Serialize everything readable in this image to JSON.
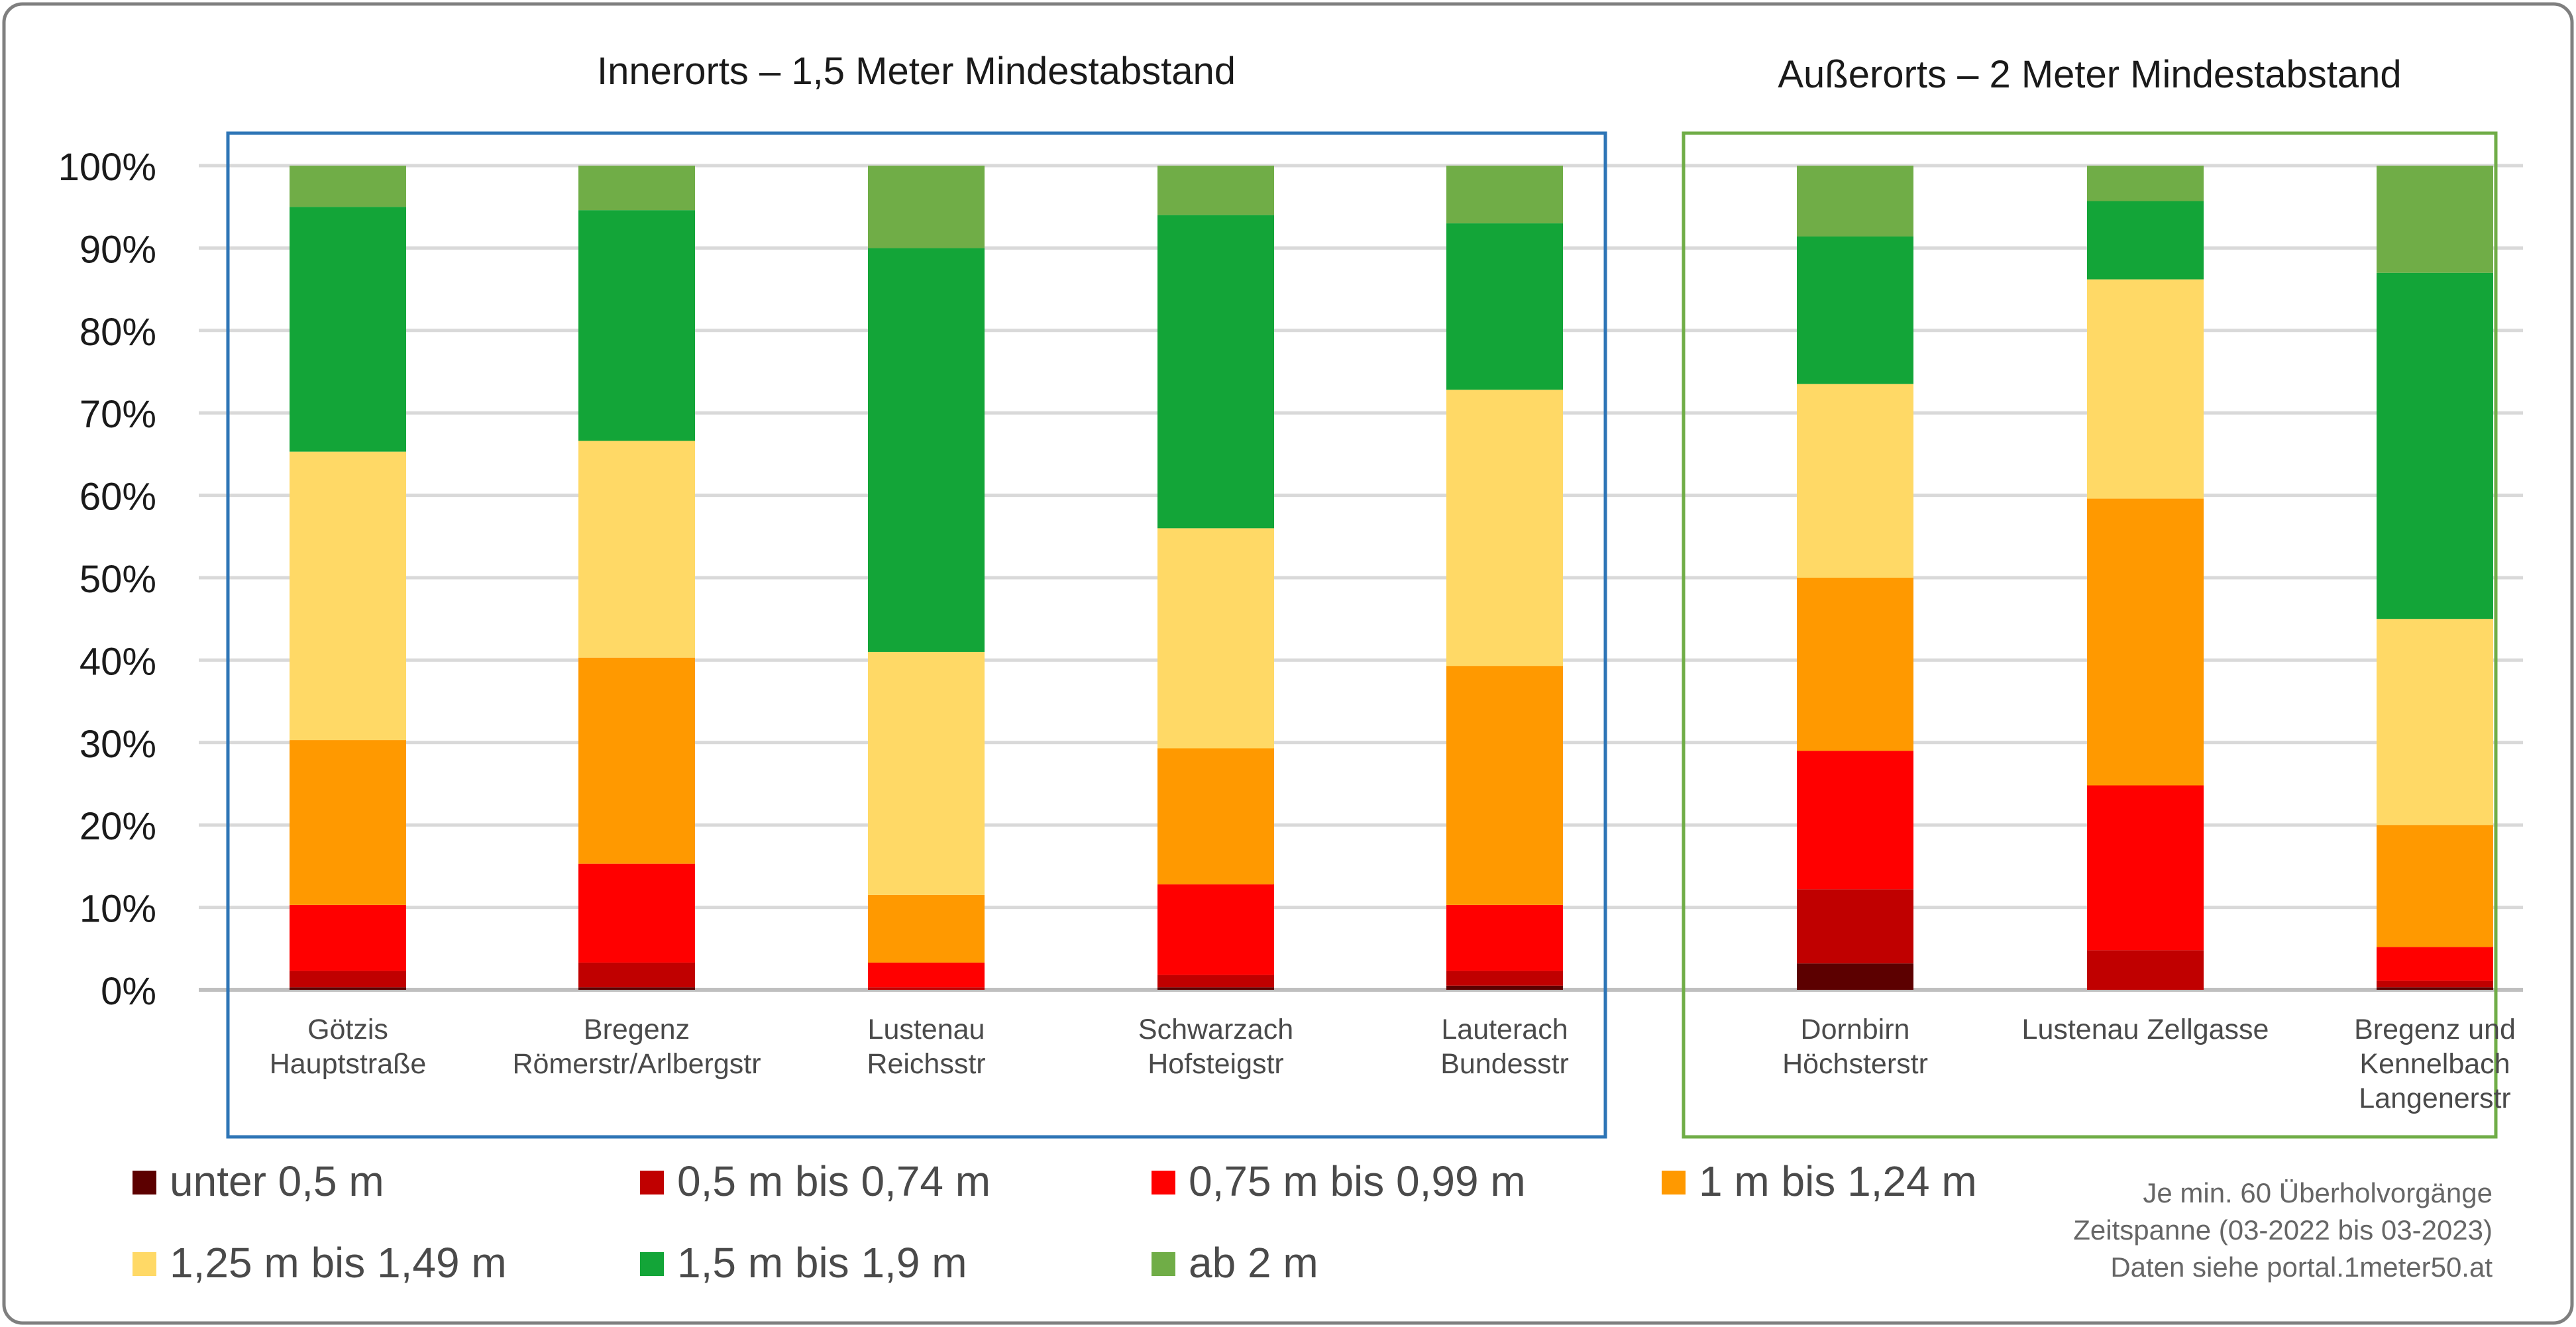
{
  "chart_data": {
    "type": "bar",
    "stacked": true,
    "normalized": true,
    "ylim": [
      0,
      100
    ],
    "yticks": [
      "0%",
      "10%",
      "20%",
      "30%",
      "40%",
      "50%",
      "60%",
      "70%",
      "80%",
      "90%",
      "100%"
    ],
    "grid": true,
    "legend_position": "bottom",
    "groups": [
      {
        "title": "Innerorts – 1,5 Meter Mindestabstand",
        "frame_color": "#2e75b6",
        "start": 0,
        "count": 5
      },
      {
        "title": "Außerorts – 2 Meter Mindestabstand",
        "frame_color": "#70ad47",
        "start": 5,
        "count": 3
      }
    ],
    "categories": [
      [
        "Götzis",
        "Hauptstraße"
      ],
      [
        "Bregenz",
        "Römerstr/Arlbergstr"
      ],
      [
        "Lustenau",
        "Reichsstr"
      ],
      [
        "Schwarzach",
        "Hofsteigstr"
      ],
      [
        "Lauterach",
        "Bundesstr"
      ],
      [
        "Dornbirn",
        "Höchsterstr"
      ],
      [
        "Lustenau Zellgasse"
      ],
      [
        "Bregenz und",
        "Kennelbach",
        "Langenerstr"
      ]
    ],
    "series": [
      {
        "name": "unter 0,5 m",
        "color": "#5c0000",
        "values": [
          0.3,
          0.3,
          0.0,
          0.3,
          0.5,
          3.2,
          0.0,
          0.3
        ]
      },
      {
        "name": "0,5 m bis 0,74 m",
        "color": "#c00000",
        "values": [
          2.0,
          3.0,
          0.3,
          1.5,
          1.8,
          9.0,
          4.8,
          0.8
        ]
      },
      {
        "name": "0,75 m bis 0,99 m",
        "color": "#ff0000",
        "values": [
          8.0,
          12.0,
          3.0,
          11.0,
          8.0,
          16.8,
          20.0,
          4.1
        ]
      },
      {
        "name": "1 m bis 1,24 m",
        "color": "#ff9900",
        "values": [
          20.0,
          25.0,
          8.2,
          16.5,
          29.0,
          21.0,
          34.8,
          14.8
        ]
      },
      {
        "name": "1,25 m bis 1,49 m",
        "color": "#ffd966",
        "values": [
          35.0,
          26.3,
          29.5,
          26.7,
          33.5,
          23.5,
          26.6,
          25.0
        ]
      },
      {
        "name": "1,5 m bis 1,9 m",
        "color": "#13a538",
        "values": [
          29.7,
          28.0,
          49.0,
          38.0,
          20.2,
          17.9,
          9.5,
          42.0
        ]
      },
      {
        "name": "ab 2 m",
        "color": "#70ad47",
        "values": [
          5.0,
          5.4,
          10.0,
          6.0,
          7.0,
          8.6,
          4.3,
          13.0
        ]
      }
    ]
  },
  "notes": [
    "Je min. 60 Überholvorgänge",
    "Zeitspanne (03-2022 bis 03-2023)",
    "Daten siehe portal.1meter50.at"
  ]
}
